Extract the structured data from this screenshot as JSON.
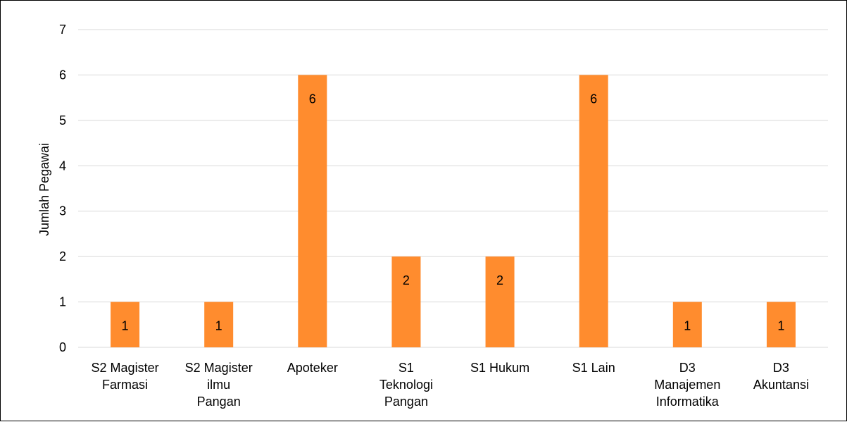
{
  "chart_data": {
    "type": "bar",
    "title": "",
    "xlabel": "",
    "ylabel": "Jumlah Pegawai",
    "ylim": [
      0,
      7
    ],
    "yticks": [
      0,
      1,
      2,
      3,
      4,
      5,
      6,
      7
    ],
    "grid": true,
    "legend": "none",
    "bar_color": "#FF8C2E",
    "gridline_color": "#D9D9D9",
    "categories": [
      [
        "S2 Magister",
        "Farmasi"
      ],
      [
        "S2 Magister",
        "ilmu",
        "Pangan"
      ],
      [
        "Apoteker"
      ],
      [
        "S1",
        "Teknologi",
        "Pangan"
      ],
      [
        "S1 Hukum"
      ],
      [
        "S1 Lain"
      ],
      [
        "D3",
        "Manajemen",
        "Informatika"
      ],
      [
        "D3",
        "Akuntansi"
      ]
    ],
    "values": [
      1,
      1,
      6,
      2,
      2,
      6,
      1,
      1
    ],
    "data_labels": [
      "1",
      "1",
      "6",
      "2",
      "2",
      "6",
      "1",
      "1"
    ]
  }
}
